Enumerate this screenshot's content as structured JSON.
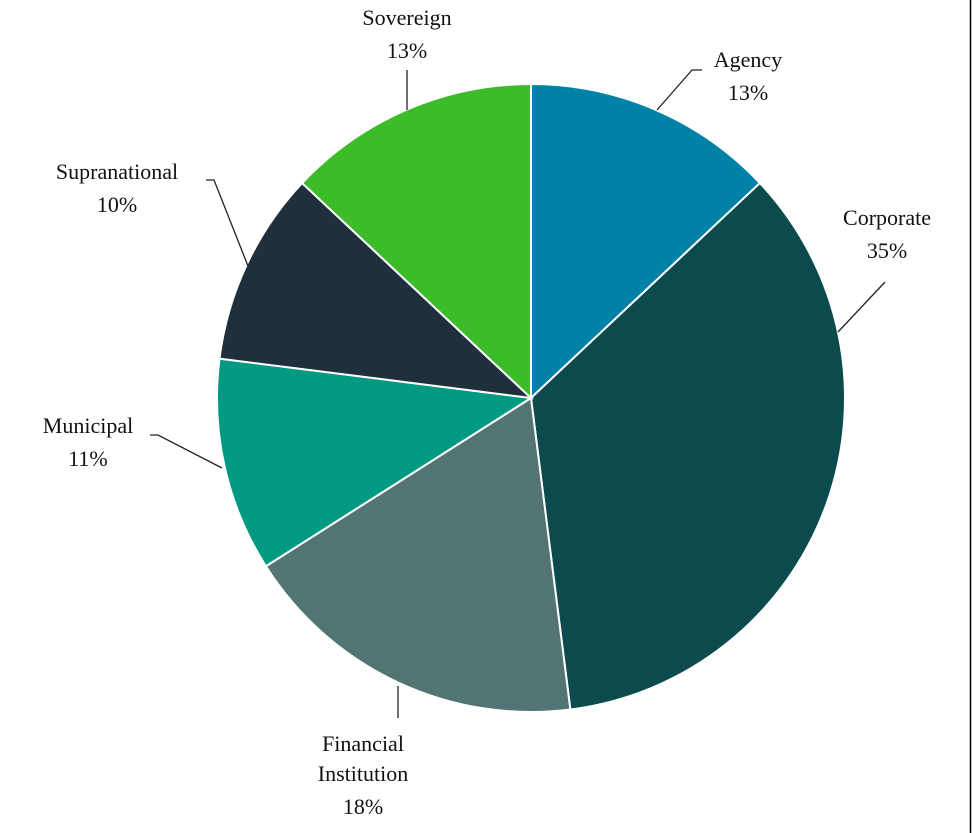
{
  "chart_data": {
    "type": "pie",
    "categories": [
      "Agency",
      "Corporate",
      "Financial Institution",
      "Municipal",
      "Supranational",
      "Sovereign"
    ],
    "values": [
      13,
      35,
      18,
      11,
      10,
      13
    ],
    "value_labels": [
      "13%",
      "35%",
      "18%",
      "11%",
      "10%",
      "13%"
    ],
    "colors": [
      "#0082a6",
      "#0b4a4d",
      "#527574",
      "#009a83",
      "#1f2f3d",
      "#3dbc2a"
    ]
  }
}
